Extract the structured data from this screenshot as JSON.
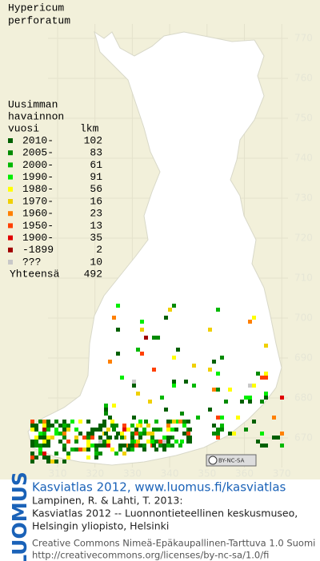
{
  "title": [
    "Hypericum",
    "perforatum"
  ],
  "legend": {
    "header": [
      "Uusimman",
      "havainnon",
      "vuosi"
    ],
    "count_header": "lkm",
    "rows": [
      {
        "label": "2010-",
        "count": "102",
        "color": "#006000"
      },
      {
        "label": "2005-",
        "count": "83",
        "color": "#008a00"
      },
      {
        "label": "2000-",
        "count": "61",
        "color": "#00b800"
      },
      {
        "label": "1990-",
        "count": "91",
        "color": "#00ee00"
      },
      {
        "label": "1980-",
        "count": "56",
        "color": "#ffff00"
      },
      {
        "label": "1970-",
        "count": "16",
        "color": "#f0d000"
      },
      {
        "label": "1960-",
        "count": "23",
        "color": "#ff8000"
      },
      {
        "label": "1950-",
        "count": "13",
        "color": "#ff4000"
      },
      {
        "label": "1900-",
        "count": "35",
        "color": "#e00000"
      },
      {
        "label": "-1899",
        "count": "2",
        "color": "#a00000"
      },
      {
        "label": "???",
        "count": "10",
        "color": "#c8c8c8"
      }
    ],
    "total": {
      "label": "Yhteensä",
      "count": "492"
    }
  },
  "north_ticks": [
    "770",
    "760",
    "750",
    "740",
    "730",
    "720",
    "710",
    "700",
    "690",
    "680",
    "670"
  ],
  "east_ticks": [
    "310",
    "320",
    "330",
    "340",
    "350",
    "360",
    "370"
  ],
  "badge": "BY-NC-SA",
  "footer": {
    "logo": "LUOMUS",
    "link": "Kasviatlas 2012, www.luomus.fi/kasviatlas",
    "citation": [
      "Lampinen, R. & Lahti, T. 2013:",
      "Kasviatlas 2012 -- Luonnontieteellinen keskusmuseo,",
      "Helsingin yliopisto, Helsinki"
    ],
    "license": [
      "Creative Commons Nimeä-Epäkaupallinen-Tarttuva 1.0 Suomi",
      "http://creativecommons.org/licenses/by-nc-sa/1.0/fi"
    ]
  }
}
